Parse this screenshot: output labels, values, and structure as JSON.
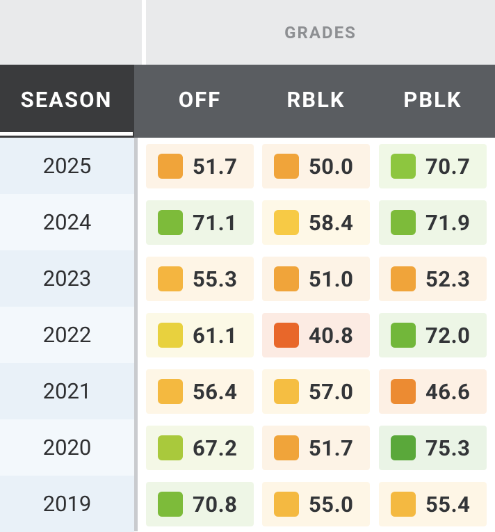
{
  "table": {
    "group_header": "GRADES",
    "columns": [
      "SEASON",
      "OFF",
      "RBLK",
      "PBLK"
    ],
    "rows": [
      {
        "season": "2025",
        "grades": [
          "51.7",
          "50.0",
          "70.7"
        ],
        "colors": [
          "#f0a43a",
          "#f0a43a",
          "#8dc63f"
        ]
      },
      {
        "season": "2024",
        "grades": [
          "71.1",
          "58.4",
          "71.9"
        ],
        "colors": [
          "#7dbb3a",
          "#f7ca45",
          "#7dbb3a"
        ]
      },
      {
        "season": "2023",
        "grades": [
          "55.3",
          "51.0",
          "52.3"
        ],
        "colors": [
          "#f4b540",
          "#f0a43a",
          "#f0a43a"
        ]
      },
      {
        "season": "2022",
        "grades": [
          "61.1",
          "40.8",
          "72.0"
        ],
        "colors": [
          "#e8d13e",
          "#e8672a",
          "#72b73a"
        ]
      },
      {
        "season": "2021",
        "grades": [
          "56.4",
          "57.0",
          "46.6"
        ],
        "colors": [
          "#f4b940",
          "#f5be42",
          "#ec8b32"
        ]
      },
      {
        "season": "2020",
        "grades": [
          "67.2",
          "51.7",
          "75.3"
        ],
        "colors": [
          "#a9c93c",
          "#f0a43a",
          "#5aa83a"
        ]
      },
      {
        "season": "2019",
        "grades": [
          "70.8",
          "55.0",
          "55.4"
        ],
        "colors": [
          "#7dbb3a",
          "#f4b941",
          "#f4b941"
        ]
      }
    ]
  }
}
